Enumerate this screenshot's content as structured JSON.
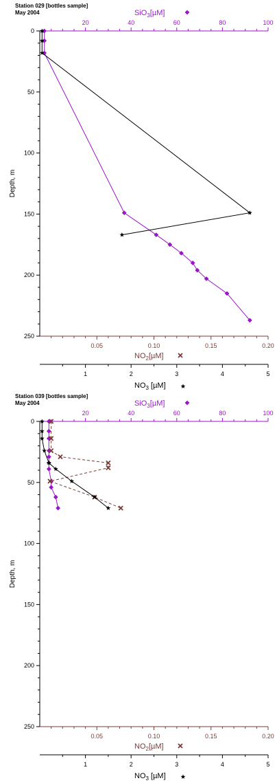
{
  "colors": {
    "sio3": "#9a14c8",
    "no2": "#7a3b38",
    "no3": "#000000",
    "axis": "#000000"
  },
  "chart_data": [
    {
      "type": "scatter",
      "title": "Station 029 [bottles sample]",
      "subtitle": "May 2004",
      "ylabel": "Depth, m",
      "ylim": [
        0,
        250
      ],
      "y_ticks": [
        0,
        50,
        100,
        150,
        200,
        250
      ],
      "y_tick_labels": [
        "0",
        "50",
        "100",
        "150",
        "200",
        "250"
      ],
      "y_inverted": true,
      "grid": false,
      "top_axis": {
        "label_prefix": "SiO",
        "label_sub": "3",
        "label_suffix": "[µM]",
        "xlim": [
          0,
          100
        ],
        "ticks": [
          20,
          40,
          60,
          80,
          100
        ],
        "tick_labels": [
          "20",
          "40",
          "60",
          "80",
          "100"
        ]
      },
      "bottom_axis_1": {
        "label_prefix": "NO",
        "label_sub": "2",
        "label_suffix": "[µM]",
        "xlim": [
          0,
          0.2
        ],
        "ticks": [
          0.05,
          0.1,
          0.15,
          0.2
        ],
        "tick_labels": [
          "0.05",
          "0.10",
          "0.15",
          "0.20"
        ]
      },
      "bottom_axis_2": {
        "label_prefix": "NO",
        "label_sub": "3",
        "label_suffix": " [µM]",
        "xlim": [
          0,
          5
        ],
        "ticks": [
          1,
          2,
          3,
          4,
          5
        ],
        "tick_labels": [
          "1",
          "2",
          "3",
          "4",
          "5"
        ]
      },
      "series": [
        {
          "name": "SiO3",
          "axis": "top",
          "marker": "diamond",
          "line": "solid",
          "x": [
            2,
            2,
            2,
            37,
            51,
            57,
            62,
            67,
            69,
            73,
            82,
            92
          ],
          "y": [
            0,
            8,
            18,
            149,
            167,
            175,
            182,
            190,
            196,
            203,
            215,
            237
          ]
        },
        {
          "name": "NO2",
          "axis": "bottom1",
          "marker": "cross",
          "line": "dashed",
          "x": [],
          "y": []
        },
        {
          "name": "NO3",
          "axis": "bottom2",
          "marker": "star",
          "line": "solid",
          "x": [
            0.05,
            0.05,
            0.05,
            4.6,
            1.8
          ],
          "y": [
            0,
            8,
            18,
            149,
            167
          ]
        }
      ]
    },
    {
      "type": "scatter",
      "title": "Station 039 [bottles sample]",
      "subtitle": "May 2004",
      "ylabel": "Depth, m",
      "ylim": [
        0,
        250
      ],
      "y_ticks": [
        0,
        50,
        100,
        150,
        200,
        250
      ],
      "y_tick_labels": [
        "0",
        "50",
        "100",
        "150",
        "200",
        "250"
      ],
      "y_inverted": true,
      "grid": false,
      "top_axis": {
        "label_prefix": "SiO",
        "label_sub": "3",
        "label_suffix": "[µM]",
        "xlim": [
          0,
          100
        ],
        "ticks": [
          20,
          40,
          60,
          80,
          100
        ],
        "tick_labels": [
          "20",
          "40",
          "60",
          "80",
          "100"
        ]
      },
      "bottom_axis_1": {
        "label_prefix": "NO",
        "label_sub": "2",
        "label_suffix": "[µM]",
        "xlim": [
          0,
          0.2
        ],
        "ticks": [
          0.05,
          0.1,
          0.15,
          0.2
        ],
        "tick_labels": [
          "0.05",
          "0.10",
          "0.15",
          "0.20"
        ]
      },
      "bottom_axis_2": {
        "label_prefix": "NO",
        "label_sub": "3",
        "label_suffix": " [µM]",
        "xlim": [
          0,
          5
        ],
        "ticks": [
          1,
          2,
          3,
          4,
          5
        ],
        "tick_labels": [
          "1",
          "2",
          "3",
          "4",
          "5"
        ]
      },
      "series": [
        {
          "name": "SiO3",
          "axis": "top",
          "marker": "diamond",
          "line": "solid",
          "x": [
            4,
            4,
            4,
            4,
            4,
            4,
            4,
            5,
            5,
            7,
            8
          ],
          "y": [
            0,
            8,
            14,
            24,
            29,
            34,
            39,
            49,
            54,
            62,
            71
          ]
        },
        {
          "name": "NO2",
          "axis": "bottom1",
          "marker": "cross",
          "line": "dashed",
          "x": [
            0.01,
            0.01,
            0.01,
            0.018,
            0.06,
            0.06,
            0.009,
            0.048,
            0.071
          ],
          "y": [
            0,
            14,
            24,
            29,
            34,
            38,
            49,
            62,
            71
          ]
        },
        {
          "name": "NO3",
          "axis": "bottom2",
          "marker": "star",
          "line": "solid",
          "x": [
            0.05,
            0.05,
            0.05,
            0.1,
            0.2,
            0.35,
            0.7,
            1.2,
            1.5
          ],
          "y": [
            0,
            8,
            14,
            24,
            34,
            39,
            49,
            62,
            71
          ]
        }
      ]
    }
  ]
}
